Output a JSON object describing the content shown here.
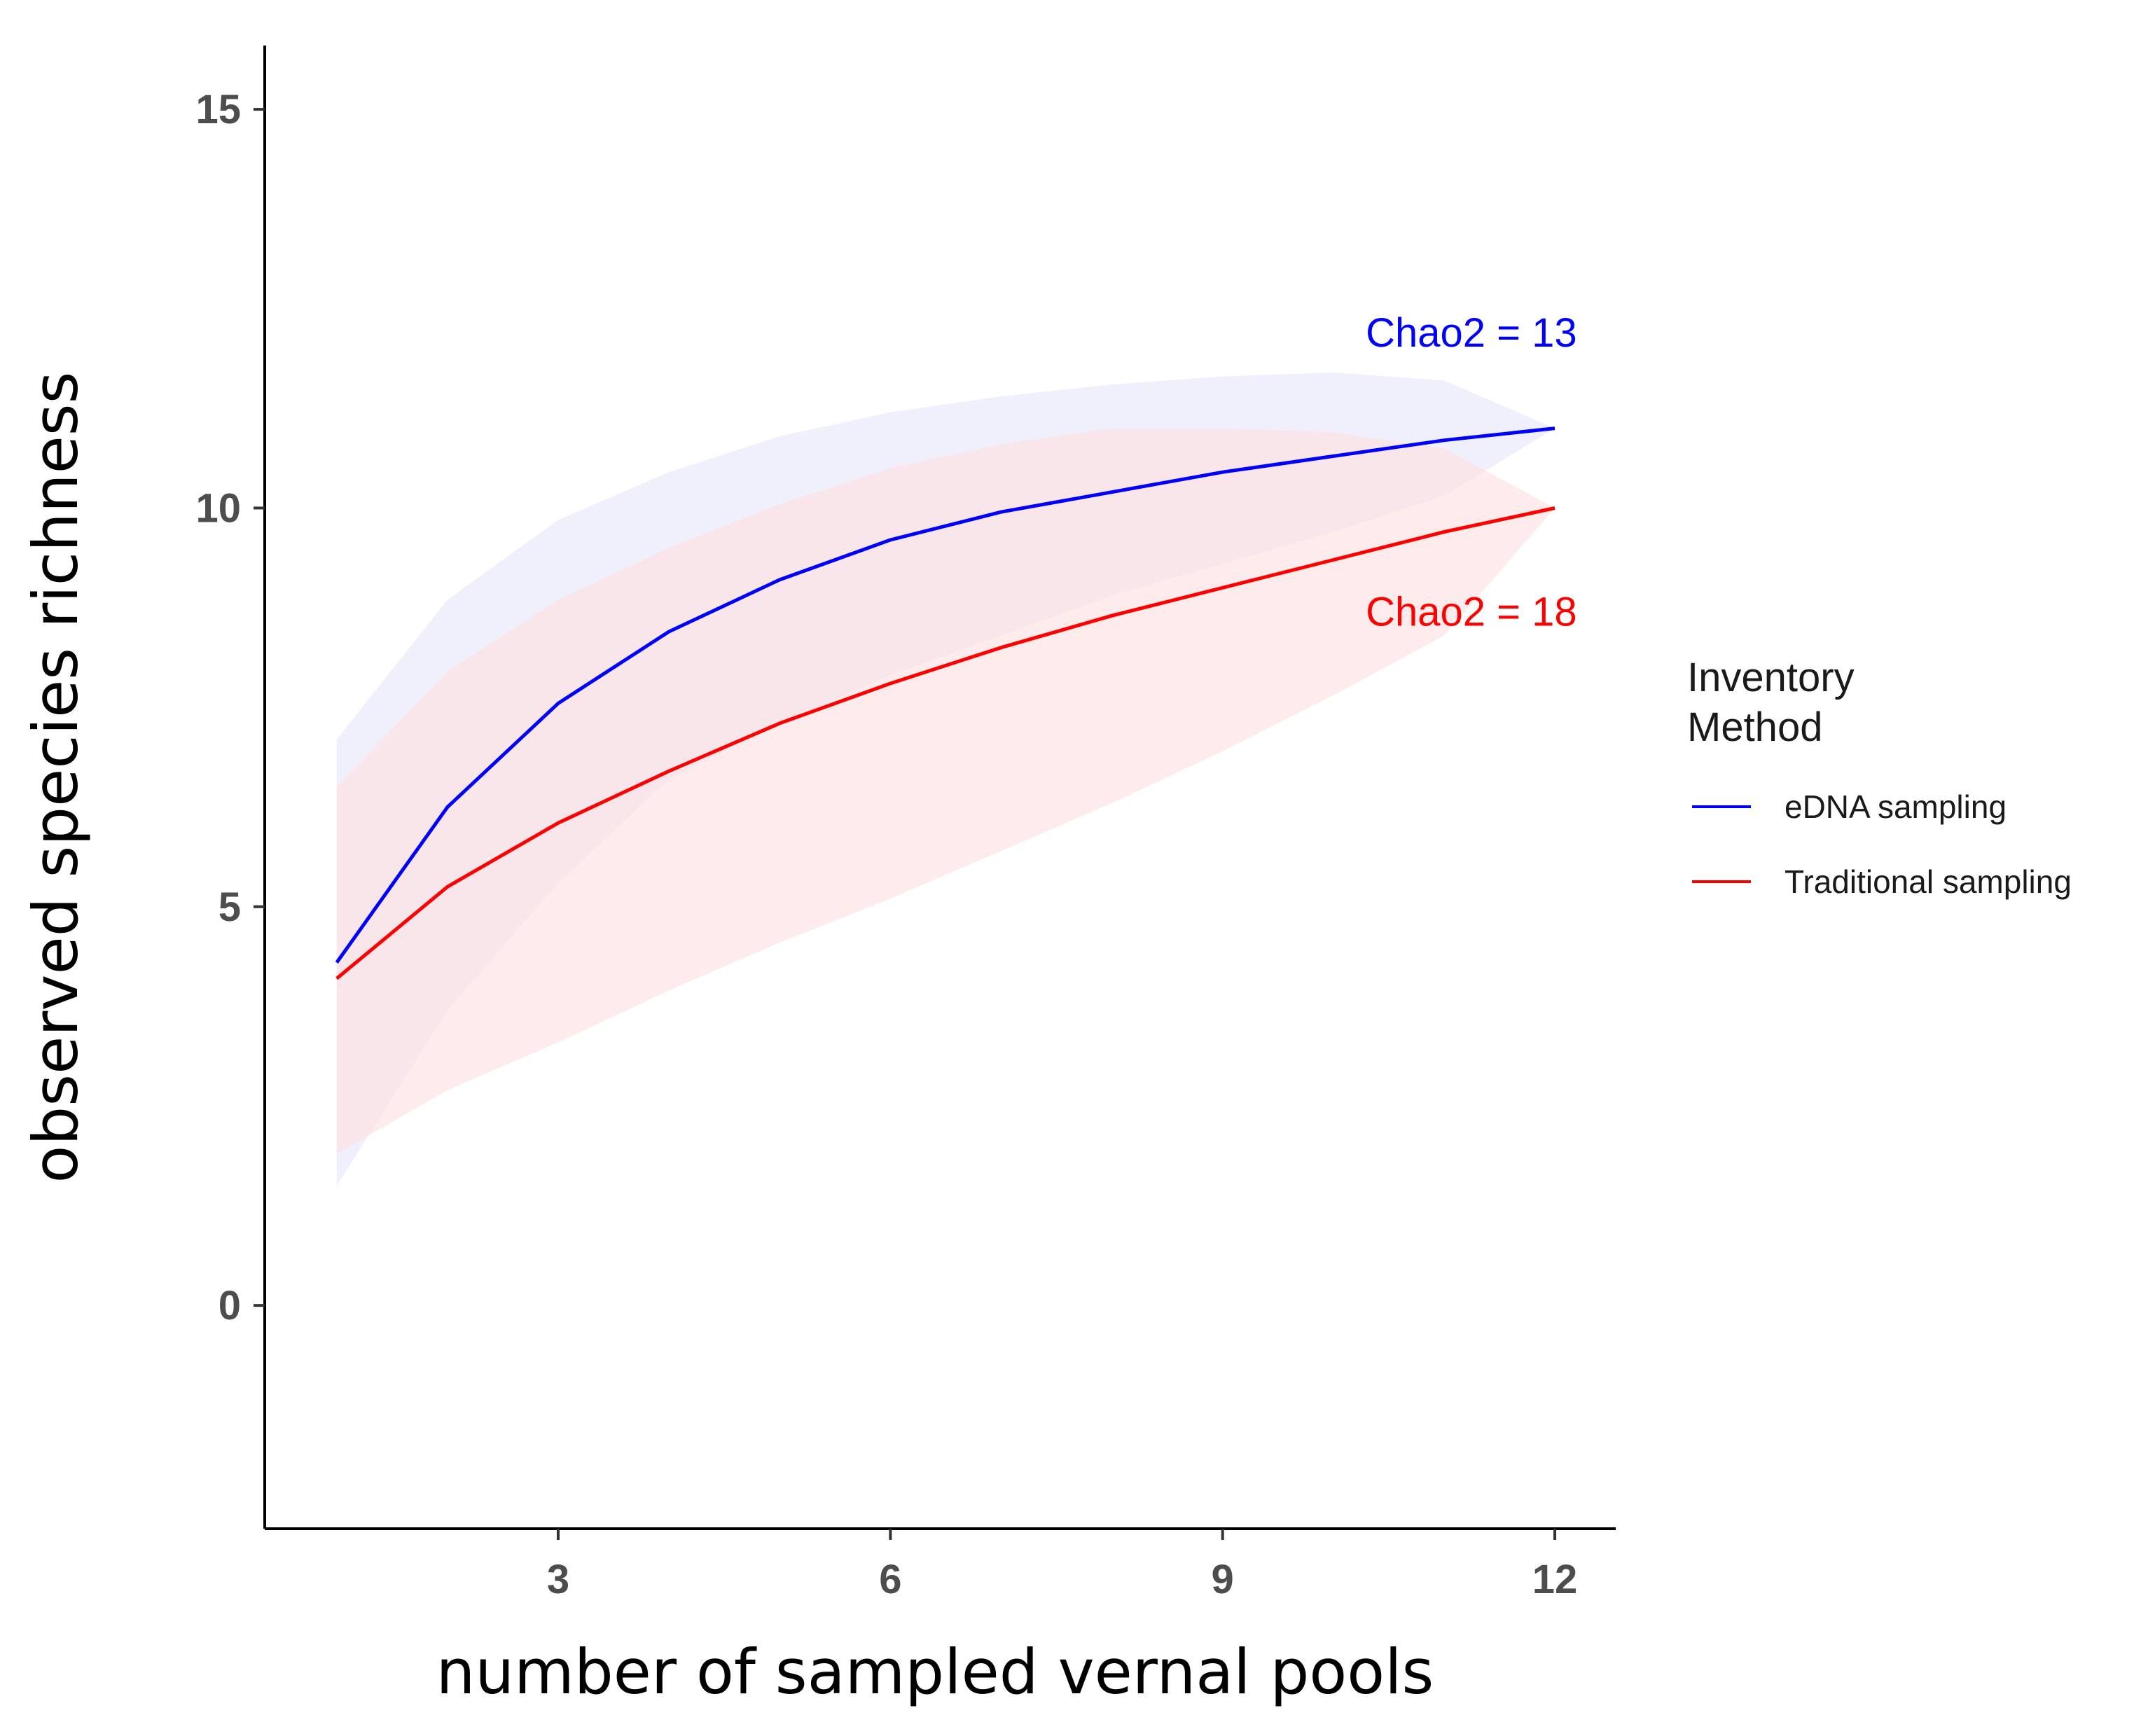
{
  "chart_data": {
    "type": "line",
    "title": "",
    "xlabel": "number of sampled vernal pools",
    "ylabel": "observed species richness",
    "xlim": [
      0.35,
      12.55
    ],
    "ylim": [
      -2.8,
      15.8
    ],
    "x_ticks": [
      3,
      6,
      9,
      12
    ],
    "y_ticks": [
      0,
      5,
      10,
      15
    ],
    "x": [
      1,
      2,
      3,
      4,
      5,
      6,
      7,
      8,
      9,
      10,
      11,
      12
    ],
    "series": [
      {
        "name": "eDNA sampling",
        "color": "#0000ff",
        "band_color": "#e6e6fb",
        "values": [
          4.3,
          6.25,
          7.55,
          8.45,
          9.1,
          9.6,
          9.95,
          10.2,
          10.45,
          10.65,
          10.85,
          11.0
        ],
        "lower": [
          1.5,
          3.7,
          5.3,
          6.6,
          7.3,
          7.9,
          8.4,
          8.9,
          9.3,
          9.7,
          10.15,
          11.0
        ],
        "upper": [
          7.1,
          8.85,
          9.85,
          10.45,
          10.9,
          11.2,
          11.4,
          11.55,
          11.65,
          11.7,
          11.6,
          11.0
        ]
      },
      {
        "name": "Traditional sampling",
        "color": "#ff0000",
        "band_color": "#fde0e0",
        "values": [
          4.1,
          5.25,
          6.05,
          6.7,
          7.3,
          7.8,
          8.25,
          8.65,
          9.0,
          9.35,
          9.7,
          10.0
        ],
        "lower": [
          1.9,
          2.7,
          3.3,
          3.95,
          4.55,
          5.1,
          5.7,
          6.3,
          6.95,
          7.65,
          8.4,
          10.0
        ],
        "upper": [
          6.5,
          7.95,
          8.85,
          9.5,
          10.05,
          10.5,
          10.8,
          11.0,
          11.0,
          10.95,
          10.75,
          10.0
        ]
      }
    ],
    "annotations": [
      {
        "text": "Chao2 = 13",
        "x": 12.2,
        "y": 12.2,
        "color": "#0000ff"
      },
      {
        "text": "Chao2 = 18",
        "x": 12.2,
        "y": 8.7,
        "color": "#ff0000"
      }
    ],
    "legend": {
      "title_lines": [
        "Inventory",
        "Method"
      ],
      "placement": "right",
      "entries": [
        "eDNA sampling",
        "Traditional sampling"
      ]
    }
  }
}
